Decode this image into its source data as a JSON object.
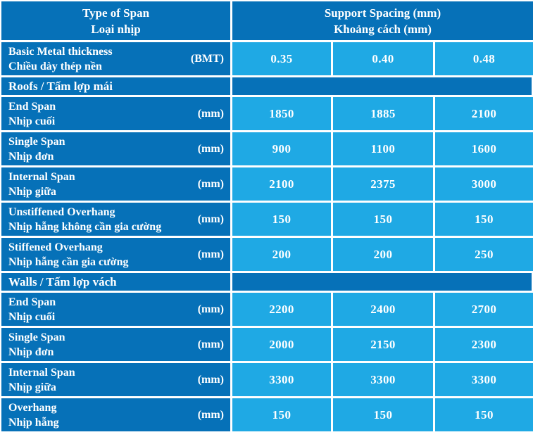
{
  "table": {
    "colors": {
      "dark_blue": "#0671b8",
      "cyan": "#1fa9e4",
      "grid": "#ffffff",
      "text": "#ffffff"
    },
    "header": {
      "col1": [
        "Type of Span",
        "Loại nhịp"
      ],
      "col2": [
        "Support Spacing (mm)",
        "Khoảng cách (mm)"
      ]
    },
    "bmt_row": {
      "label_en": "Basic Metal thickness",
      "label_vi": "Chiều dày thép nền",
      "unit": "(BMT)",
      "values": [
        "0.35",
        "0.40",
        "0.48"
      ]
    },
    "sections": [
      {
        "key": "roofs",
        "title": "Roofs / Tấm lợp mái",
        "rows": [
          {
            "en": "End Span",
            "vi": "Nhịp cuối",
            "unit": "(mm)",
            "values": [
              "1850",
              "1885",
              "2100"
            ]
          },
          {
            "en": "Single Span",
            "vi": "Nhịp đơn",
            "unit": "(mm)",
            "values": [
              "900",
              "1100",
              "1600"
            ]
          },
          {
            "en": "Internal Span",
            "vi": "Nhịp giữa",
            "unit": "(mm)",
            "values": [
              "2100",
              "2375",
              "3000"
            ]
          },
          {
            "en": "Unstiffened Overhang",
            "vi": "Nhịp hẫng không cần gia cường",
            "unit": "(mm)",
            "values": [
              "150",
              "150",
              "150"
            ]
          },
          {
            "en": "Stiffened Overhang",
            "vi": "Nhịp hẫng cần gia cường",
            "unit": "(mm)",
            "values": [
              "200",
              "200",
              "250"
            ]
          }
        ]
      },
      {
        "key": "walls",
        "title": "Walls / Tấm lợp vách",
        "rows": [
          {
            "en": "End Span",
            "vi": "Nhịp cuối",
            "unit": "(mm)",
            "values": [
              "2200",
              "2400",
              "2700"
            ]
          },
          {
            "en": "Single Span",
            "vi": "Nhịp đơn",
            "unit": "(mm)",
            "values": [
              "2000",
              "2150",
              "2300"
            ]
          },
          {
            "en": "Internal Span",
            "vi": "Nhịp giữa",
            "unit": "(mm)",
            "values": [
              "3300",
              "3300",
              "3300"
            ]
          },
          {
            "en": "Overhang",
            "vi": "Nhịp hẫng",
            "unit": "(mm)",
            "values": [
              "150",
              "150",
              "150"
            ]
          }
        ]
      }
    ]
  }
}
